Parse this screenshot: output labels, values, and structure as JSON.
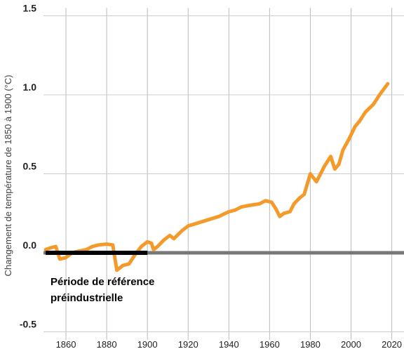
{
  "chart_data": {
    "type": "line",
    "y_label": "Changement de température de 1850 à 1900 (°C)",
    "annotation": [
      "Période de référence",
      "préindustrielle"
    ],
    "reference_period": [
      1850,
      1900
    ],
    "x": [
      1850,
      1852,
      1855,
      1857,
      1860,
      1863,
      1866,
      1870,
      1873,
      1876,
      1880,
      1883,
      1885,
      1888,
      1891,
      1894,
      1897,
      1900,
      1902,
      1903,
      1905,
      1908,
      1911,
      1913,
      1917,
      1920,
      1925,
      1930,
      1935,
      1940,
      1943,
      1946,
      1950,
      1955,
      1958,
      1961,
      1963,
      1965,
      1967,
      1970,
      1972,
      1975,
      1977,
      1980,
      1983,
      1987,
      1990,
      1992,
      1994,
      1996,
      1999,
      2002,
      2004,
      2007,
      2011,
      2014,
      2018
    ],
    "series": [
      {
        "name": "Température",
        "color": "#f39a2b",
        "values": [
          0.02,
          0.03,
          0.04,
          -0.04,
          -0.03,
          0.0,
          0.01,
          0.02,
          0.04,
          0.05,
          0.055,
          0.05,
          -0.11,
          -0.08,
          -0.07,
          -0.01,
          0.04,
          0.07,
          0.06,
          0.02,
          0.04,
          0.08,
          0.11,
          0.09,
          0.14,
          0.17,
          0.19,
          0.21,
          0.23,
          0.26,
          0.27,
          0.29,
          0.3,
          0.31,
          0.33,
          0.32,
          0.28,
          0.23,
          0.25,
          0.26,
          0.31,
          0.35,
          0.37,
          0.5,
          0.45,
          0.55,
          0.61,
          0.53,
          0.56,
          0.65,
          0.72,
          0.8,
          0.83,
          0.89,
          0.94,
          1.0,
          1.07
        ]
      }
    ],
    "xlim": [
      1850,
      2026
    ],
    "xticks": [
      1860,
      1880,
      1900,
      1920,
      1940,
      1960,
      1980,
      2000,
      2020
    ],
    "ylim": [
      -0.55,
      1.55
    ],
    "yticks": [
      {
        "value": -0.5,
        "label": "-0.5"
      },
      {
        "value": 0,
        "label": "0.0"
      },
      0.5,
      {
        "value": 1,
        "label": "1.0"
      },
      1.5
    ],
    "grid": true
  }
}
